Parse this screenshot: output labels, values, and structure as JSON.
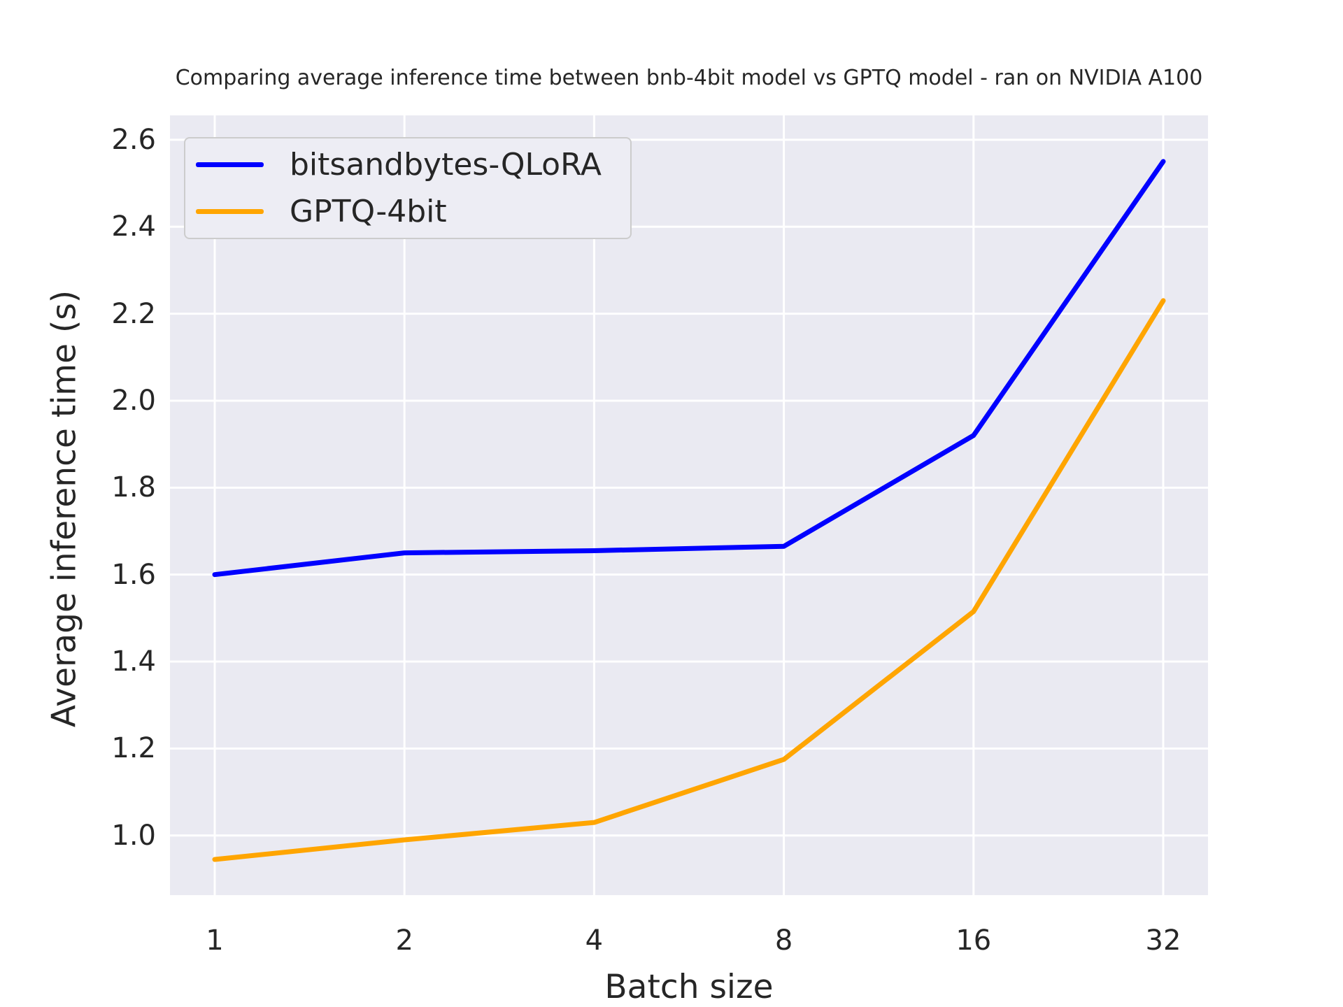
{
  "chart_data": {
    "type": "line",
    "title": "Comparing average inference time between bnb-4bit model vs GPTQ model - ran on NVIDIA A100",
    "xlabel": "Batch size",
    "ylabel": "Average inference time (s)",
    "categories": [
      1,
      2,
      4,
      8,
      16,
      32
    ],
    "x_scale": "log2-even-spacing",
    "series": [
      {
        "name": "bitsandbytes-QLoRA",
        "color": "#0000FF",
        "values": [
          1.6,
          1.65,
          1.655,
          1.665,
          1.92,
          2.55
        ]
      },
      {
        "name": "GPTQ-4bit",
        "color": "#FFA500",
        "values": [
          0.945,
          0.99,
          1.03,
          1.175,
          1.515,
          2.23
        ]
      }
    ],
    "y_ticks": [
      1.0,
      1.2,
      1.4,
      1.6,
      1.8,
      2.0,
      2.2,
      2.4,
      2.6
    ],
    "ylim": [
      0.863,
      2.656
    ],
    "grid": true,
    "legend_position": "upper-left",
    "colors": {
      "plot_background": "#EAEAF2",
      "grid_line": "#FFFFFF",
      "text": "#262626",
      "legend_background": "#EDEDF4",
      "legend_border": "#CCCCCC"
    }
  }
}
